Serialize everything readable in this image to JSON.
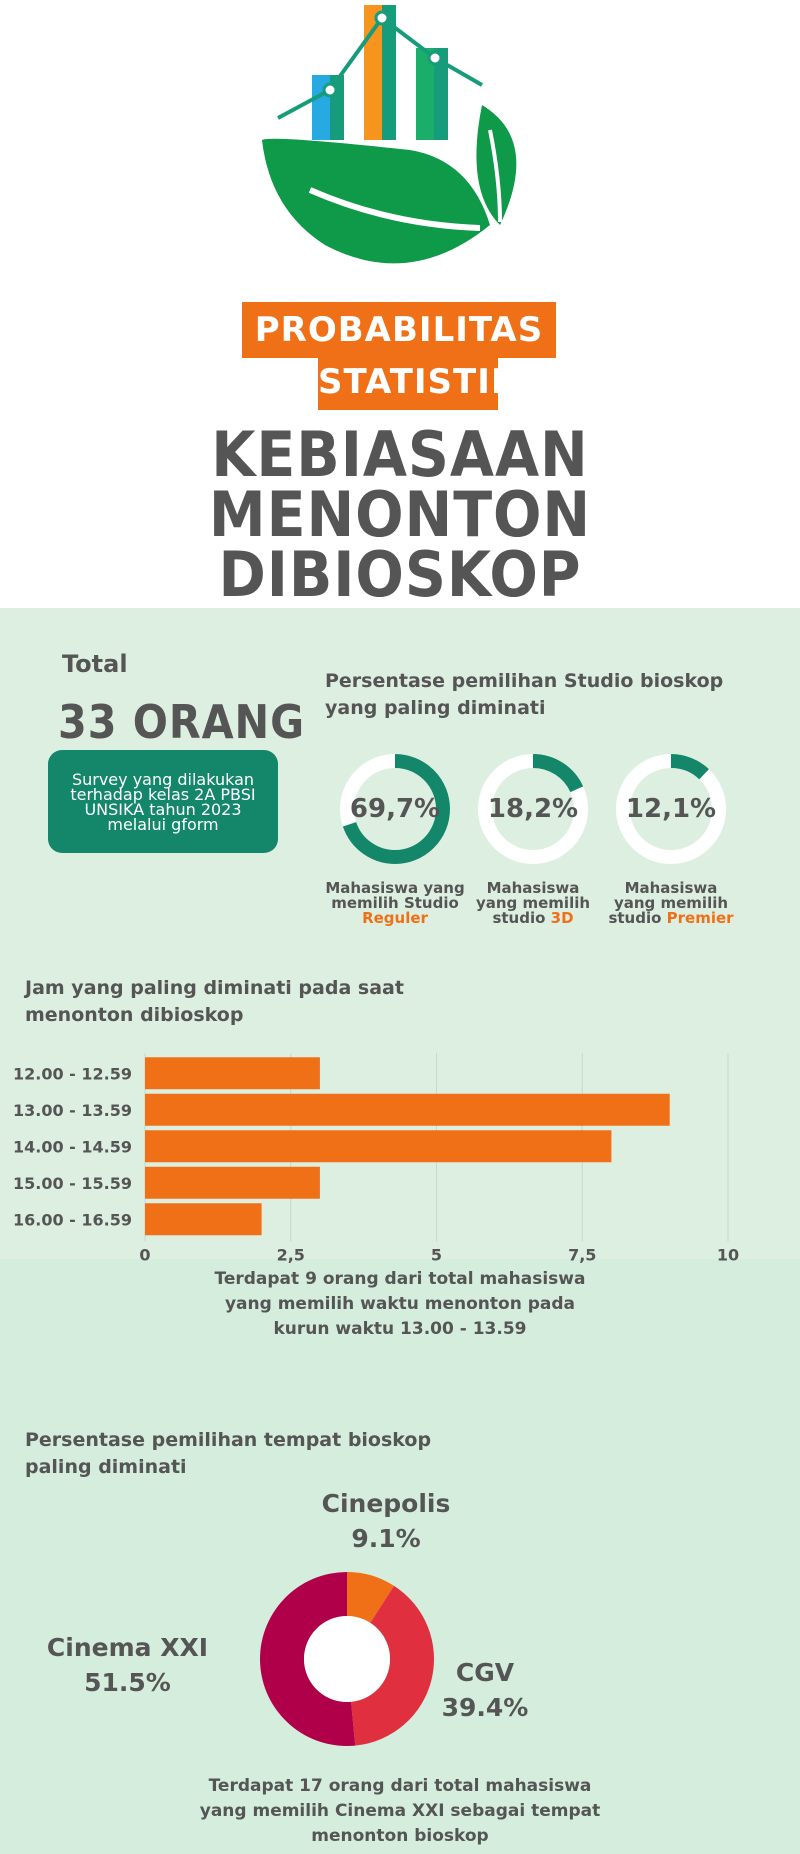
{
  "header": {
    "subject_line1": "PROBABILITAS DAN",
    "subject_line2": "STATISTIKA",
    "title_line1": "KEBIASAAN",
    "title_line2": "MENONTON",
    "title_line3": "DIBIOSKOP"
  },
  "colors": {
    "orange": "#F07018",
    "teal": "#14876A",
    "text": "#555555",
    "bg_light_green": "#DDEFE1",
    "pie_cinema_xxi": "#B0004A",
    "pie_cgv": "#E03040",
    "pie_cinepolis": "#F07018"
  },
  "summary": {
    "total_label": "Total",
    "total_value": "33 ORANG",
    "survey_text": "Survey yang dilakukan terhadap kelas 2A PBSI UNSIKA tahun 2023 melalui gform"
  },
  "studio": {
    "title_line1": "Persentase pemilihan Studio bioskop",
    "title_line2": "yang paling diminati",
    "items": [
      {
        "value_label": "69,7%",
        "percent": 69.7,
        "cap1": "Mahasiswa yang",
        "cap2": "memilih Studio",
        "cap3_pre": "",
        "cap3_hl": "Reguler"
      },
      {
        "value_label": "18,2%",
        "percent": 18.2,
        "cap1": "Mahasiswa",
        "cap2": "yang memilih",
        "cap3_pre": "studio ",
        "cap3_hl": "3D"
      },
      {
        "value_label": "12,1%",
        "percent": 12.1,
        "cap1": "Mahasiswa",
        "cap2": "yang memilih",
        "cap3_pre": "studio ",
        "cap3_hl": "Premier"
      }
    ]
  },
  "hours": {
    "title_line1": "Jam yang paling diminati pada saat",
    "title_line2": "menonton dibioskop",
    "note_line1": "Terdapat 9 orang dari total mahasiswa",
    "note_line2": "yang memilih waktu menonton pada",
    "note_line3": "kurun waktu 13.00 - 13.59"
  },
  "place": {
    "title_line1": "Persentase pemilihan tempat bioskop",
    "title_line2": "paling diminati",
    "note_line1": "Terdapat 17 orang dari total mahasiswa",
    "note_line2": "yang memilih Cinema XXI sebagai tempat",
    "note_line3": "menonton bioskop"
  },
  "chart_data": [
    {
      "type": "bar",
      "orientation": "horizontal",
      "categories": [
        "12.00 - 12.59",
        "13.00 - 13.59",
        "14.00 - 14.59",
        "15.00 - 15.59",
        "16.00 - 16.59"
      ],
      "values": [
        3,
        9,
        8,
        3,
        2
      ],
      "xlim": [
        0,
        10
      ],
      "xticks": [
        "0",
        "2,5",
        "5",
        "7,5",
        "10"
      ],
      "grid": true
    },
    {
      "type": "pie",
      "donut": true,
      "labels": [
        "Cinepolis",
        "CGV",
        "Cinema XXI"
      ],
      "values": [
        9.1,
        39.4,
        51.5
      ],
      "value_labels": [
        "9.1%",
        "39.4%",
        "51.5%"
      ]
    }
  ]
}
